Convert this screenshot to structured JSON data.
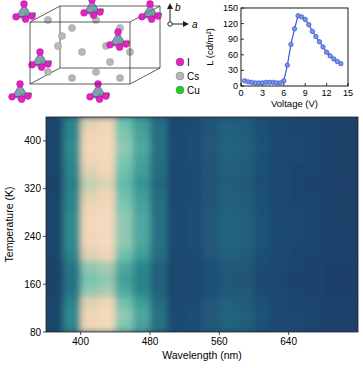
{
  "structure": {
    "axes": [
      "b",
      "a"
    ],
    "legend": [
      {
        "label": "I",
        "color": "#e81fc4"
      },
      {
        "label": "Cs",
        "color": "#b8b8b8"
      },
      {
        "label": "Cu",
        "color": "#22cc22"
      }
    ]
  },
  "chart_data": [
    {
      "type": "line",
      "x": [
        0.5,
        1,
        1.5,
        2,
        2.5,
        3,
        3.5,
        4,
        4.5,
        5,
        5.5,
        6,
        6.5,
        7,
        7.5,
        8,
        8.5,
        9,
        9.5,
        10,
        10.5,
        11,
        11.5,
        12,
        12.5,
        13,
        13.5,
        14
      ],
      "values": [
        10,
        8,
        7,
        6,
        6,
        6,
        7,
        7,
        7,
        6,
        6,
        10,
        40,
        80,
        110,
        135,
        133,
        128,
        118,
        105,
        95,
        85,
        75,
        65,
        58,
        52,
        47,
        43
      ],
      "color": "#3b5bd6",
      "marker": "circle",
      "xlabel": "Voltage (V)",
      "ylabel": "L (cd/m²)",
      "xlim": [
        0,
        15
      ],
      "ylim": [
        0,
        150
      ],
      "xticks": [
        0,
        3,
        6,
        9,
        12,
        15
      ],
      "yticks": [
        0,
        30,
        60,
        90,
        120,
        150
      ]
    },
    {
      "type": "heatmap",
      "x": [
        370,
        390,
        410,
        430,
        450,
        470,
        490,
        510,
        530,
        550,
        570,
        590,
        610,
        630,
        650,
        670,
        690,
        710
      ],
      "y": [
        90,
        110,
        130,
        150,
        170,
        190,
        210,
        230,
        250,
        270,
        290,
        310,
        330,
        350,
        370,
        390,
        410,
        430
      ],
      "values": [
        [
          0.05,
          0.33,
          0.76,
          0.81,
          0.57,
          0.43,
          0.24,
          0.08,
          0.1,
          0.14,
          0.19,
          0.17,
          0.11,
          0.08,
          0.06,
          0.05,
          0.04,
          0.04
        ],
        [
          0.05,
          0.35,
          0.8,
          0.85,
          0.6,
          0.45,
          0.25,
          0.08,
          0.1,
          0.15,
          0.2,
          0.18,
          0.12,
          0.08,
          0.06,
          0.05,
          0.04,
          0.04
        ],
        [
          0.05,
          0.32,
          0.72,
          0.77,
          0.54,
          0.41,
          0.23,
          0.07,
          0.09,
          0.14,
          0.18,
          0.16,
          0.11,
          0.07,
          0.05,
          0.05,
          0.04,
          0.04
        ],
        [
          0.04,
          0.26,
          0.6,
          0.64,
          0.45,
          0.34,
          0.19,
          0.06,
          0.08,
          0.11,
          0.15,
          0.14,
          0.09,
          0.06,
          0.05,
          0.04,
          0.03,
          0.03
        ],
        [
          0.04,
          0.25,
          0.56,
          0.6,
          0.42,
          0.32,
          0.18,
          0.06,
          0.07,
          0.11,
          0.14,
          0.13,
          0.08,
          0.06,
          0.04,
          0.04,
          0.03,
          0.03
        ],
        [
          0.04,
          0.26,
          0.6,
          0.64,
          0.45,
          0.34,
          0.19,
          0.06,
          0.08,
          0.11,
          0.15,
          0.14,
          0.09,
          0.06,
          0.05,
          0.04,
          0.03,
          0.03
        ],
        [
          0.05,
          0.32,
          0.72,
          0.77,
          0.54,
          0.41,
          0.23,
          0.07,
          0.09,
          0.14,
          0.18,
          0.16,
          0.11,
          0.07,
          0.05,
          0.05,
          0.04,
          0.04
        ],
        [
          0.05,
          0.35,
          0.8,
          0.85,
          0.6,
          0.45,
          0.25,
          0.08,
          0.1,
          0.15,
          0.2,
          0.18,
          0.12,
          0.08,
          0.06,
          0.05,
          0.04,
          0.04
        ],
        [
          0.05,
          0.35,
          0.8,
          0.85,
          0.6,
          0.45,
          0.25,
          0.08,
          0.1,
          0.15,
          0.2,
          0.18,
          0.12,
          0.08,
          0.06,
          0.05,
          0.04,
          0.04
        ],
        [
          0.05,
          0.35,
          0.8,
          0.85,
          0.6,
          0.45,
          0.25,
          0.08,
          0.1,
          0.15,
          0.2,
          0.18,
          0.12,
          0.08,
          0.06,
          0.05,
          0.04,
          0.04
        ],
        [
          0.05,
          0.33,
          0.76,
          0.81,
          0.57,
          0.43,
          0.24,
          0.08,
          0.1,
          0.14,
          0.19,
          0.17,
          0.11,
          0.08,
          0.06,
          0.05,
          0.04,
          0.04
        ],
        [
          0.05,
          0.32,
          0.72,
          0.77,
          0.54,
          0.41,
          0.23,
          0.07,
          0.09,
          0.14,
          0.18,
          0.16,
          0.11,
          0.07,
          0.05,
          0.05,
          0.04,
          0.04
        ],
        [
          0.04,
          0.3,
          0.68,
          0.72,
          0.51,
          0.38,
          0.21,
          0.07,
          0.09,
          0.13,
          0.17,
          0.15,
          0.1,
          0.07,
          0.05,
          0.04,
          0.03,
          0.03
        ],
        [
          0.05,
          0.32,
          0.72,
          0.77,
          0.54,
          0.41,
          0.23,
          0.07,
          0.09,
          0.14,
          0.18,
          0.16,
          0.11,
          0.07,
          0.05,
          0.05,
          0.04,
          0.04
        ],
        [
          0.05,
          0.33,
          0.76,
          0.81,
          0.57,
          0.43,
          0.24,
          0.08,
          0.1,
          0.14,
          0.19,
          0.17,
          0.11,
          0.08,
          0.06,
          0.05,
          0.04,
          0.04
        ],
        [
          0.05,
          0.35,
          0.8,
          0.85,
          0.6,
          0.45,
          0.25,
          0.08,
          0.1,
          0.15,
          0.2,
          0.18,
          0.12,
          0.08,
          0.06,
          0.05,
          0.04,
          0.04
        ],
        [
          0.05,
          0.33,
          0.76,
          0.81,
          0.57,
          0.43,
          0.24,
          0.08,
          0.1,
          0.14,
          0.19,
          0.17,
          0.11,
          0.08,
          0.06,
          0.05,
          0.04,
          0.04
        ],
        [
          0.05,
          0.32,
          0.72,
          0.77,
          0.54,
          0.41,
          0.23,
          0.07,
          0.09,
          0.14,
          0.18,
          0.16,
          0.11,
          0.07,
          0.05,
          0.05,
          0.04,
          0.04
        ]
      ],
      "xlabel": "Wavelength (nm)",
      "ylabel": "Temperature (K)",
      "xlim": [
        360,
        720
      ],
      "ylim": [
        80,
        440
      ],
      "xticks": [
        400,
        480,
        560,
        640
      ],
      "yticks": [
        80,
        160,
        240,
        320,
        400
      ]
    }
  ]
}
